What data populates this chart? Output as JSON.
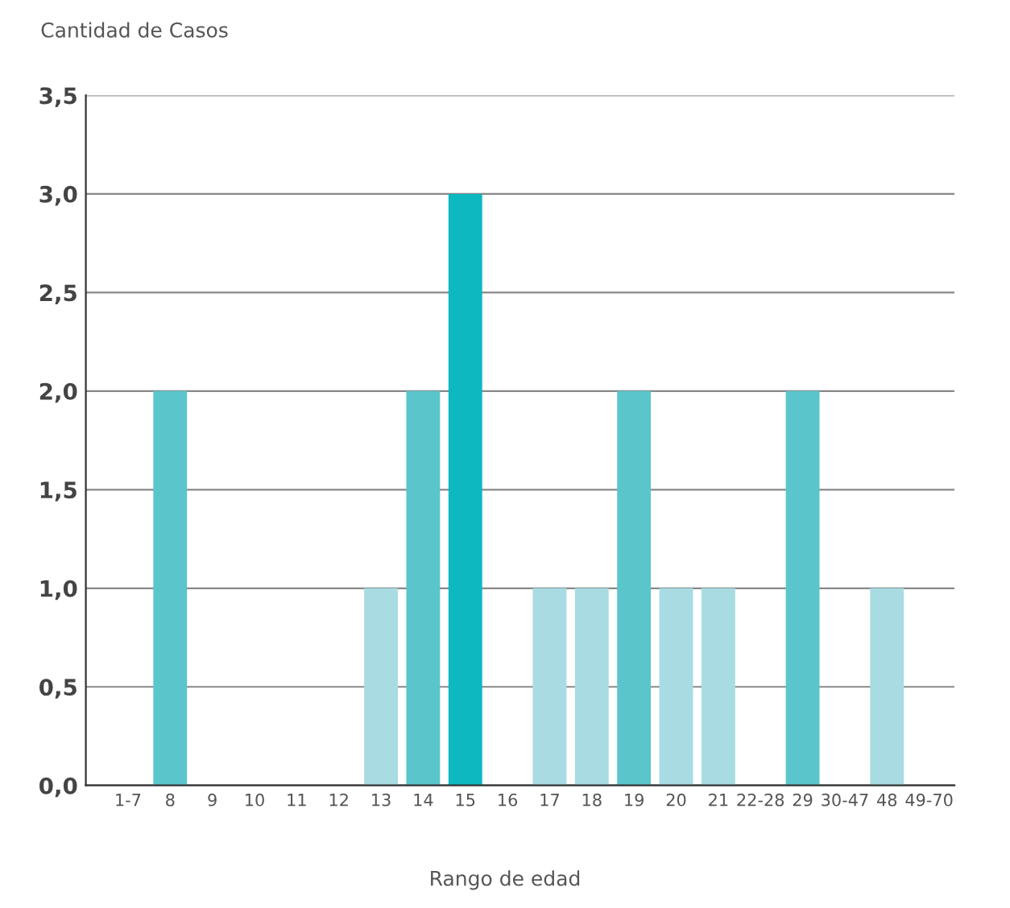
{
  "chart_data": {
    "type": "bar",
    "ylabel": "Cantidad de Casos",
    "xlabel": "Rango de edad",
    "categories": [
      "1-7",
      "8",
      "9",
      "10",
      "11",
      "12",
      "13",
      "14",
      "15",
      "16",
      "17",
      "18",
      "19",
      "20",
      "21",
      "22-28",
      "29",
      "30-47",
      "48",
      "49-70"
    ],
    "values": [
      0,
      2,
      0,
      0,
      0,
      0,
      1,
      2,
      3,
      0,
      1,
      1,
      2,
      1,
      1,
      0,
      2,
      0,
      1,
      0
    ],
    "colors": [
      "#a8dce2",
      "#5bc5cc",
      "#a8dce2",
      "#a8dce2",
      "#a8dce2",
      "#a8dce2",
      "#a8dce2",
      "#5bc5cc",
      "#0db8c0",
      "#a8dce2",
      "#a8dce2",
      "#a8dce2",
      "#5bc5cc",
      "#a8dce2",
      "#a8dce2",
      "#a8dce2",
      "#5bc5cc",
      "#a8dce2",
      "#a8dce2",
      "#a8dce2"
    ],
    "ylim": [
      0,
      3.5
    ],
    "yticks": [
      {
        "value": 0,
        "label": "0,0"
      },
      {
        "value": 0.5,
        "label": "0,5"
      },
      {
        "value": 1,
        "label": "1,0"
      },
      {
        "value": 1.5,
        "label": "1,5"
      },
      {
        "value": 2,
        "label": "2,0"
      },
      {
        "value": 2.5,
        "label": "2,5"
      },
      {
        "value": 3,
        "label": "3,0"
      },
      {
        "value": 3.5,
        "label": "3,5"
      }
    ],
    "grid": "y",
    "legend": false
  }
}
